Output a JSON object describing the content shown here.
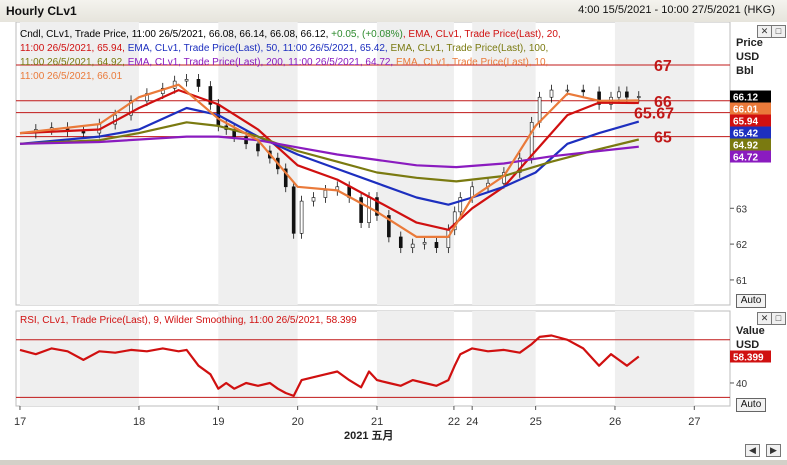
{
  "window": {
    "title": "Hourly CLv1",
    "time_range": "4:00 15/5/2021 - 10:00 27/5/2021 (HKG)"
  },
  "price_panel": {
    "legend_lines": [
      {
        "parts": [
          {
            "text": "Cndl, CLv1, Trade Price, 11:00 26/5/2021, 66.08, 66.14, 66.08, 66.12, ",
            "color": "#000000"
          },
          {
            "text": "+0.05, (+0.08%)",
            "color": "#2e8b2e"
          },
          {
            "text": ", EMA, CLv1, Trade Price(Last), 20,",
            "color": "#d01010"
          }
        ]
      },
      {
        "parts": [
          {
            "text": "11:00 26/5/2021, 65.94, ",
            "color": "#d01010"
          },
          {
            "text": "EMA, CLv1, Trade Price(Last), 50, 11:00 26/5/2021, 65.42, ",
            "color": "#1d2fbf"
          },
          {
            "text": "EMA, CLv1, Trade Price(Last), 100,",
            "color": "#7a7a10"
          }
        ]
      },
      {
        "parts": [
          {
            "text": "11:00 26/5/2021, 64.92, ",
            "color": "#7a7a10"
          },
          {
            "text": "EMA, CLv1, Trade Price(Last), 200, 11:00 26/5/2021, 64.72, ",
            "color": "#8a1bbf"
          },
          {
            "text": "EMA, CLv1, Trade Price(Last), 10,",
            "color": "#ea7a3a"
          }
        ]
      },
      {
        "parts": [
          {
            "text": "11:00 26/5/2021, 66.01",
            "color": "#ea7a3a"
          }
        ]
      }
    ],
    "axis_header": [
      "Price",
      "USD",
      "Bbl"
    ],
    "auto_label": "Auto"
  },
  "rsi_panel": {
    "legend": "RSI, CLv1, Trade Price(Last), 9, Wilder Smoothing, 11:00 26/5/2021, 58.399",
    "axis_header": [
      "Value",
      "USD"
    ],
    "auto_label": "Auto"
  },
  "x_axis": {
    "day_ticks": [
      {
        "day": "17",
        "x": 16.5
      },
      {
        "day": "18",
        "x": 18
      },
      {
        "day": "19",
        "x": 19
      },
      {
        "day": "20",
        "x": 20
      },
      {
        "day": "21",
        "x": 21
      },
      {
        "day": "22",
        "x": 21.97
      },
      {
        "day": "24",
        "x": 22.2
      },
      {
        "day": "25",
        "x": 23
      },
      {
        "day": "26",
        "x": 24
      },
      {
        "day": "27",
        "x": 25
      }
    ],
    "caption": "2021 五月"
  },
  "chart_data": [
    {
      "type": "line",
      "subtype": "candlestick with EMAs",
      "title": "Hourly CLv1",
      "ylabel": "Price USD Bbl",
      "ylim": [
        60.3,
        68.2
      ],
      "xlim": [
        16.45,
        25.45
      ],
      "y_ticks": [
        61,
        62,
        63
      ],
      "grid": true,
      "candles_close": [
        [
          16.5,
          65.1
        ],
        [
          16.7,
          65.2
        ],
        [
          16.9,
          65.25
        ],
        [
          17.1,
          65.15
        ],
        [
          17.3,
          65.1
        ],
        [
          17.5,
          65.35
        ],
        [
          17.7,
          65.6
        ],
        [
          17.9,
          66.0
        ],
        [
          18.1,
          66.2
        ],
        [
          18.3,
          66.35
        ],
        [
          18.45,
          66.55
        ],
        [
          18.6,
          66.6
        ],
        [
          18.75,
          66.4
        ],
        [
          18.9,
          65.9
        ],
        [
          19.0,
          65.3
        ],
        [
          19.1,
          65.2
        ],
        [
          19.2,
          65.0
        ],
        [
          19.35,
          64.8
        ],
        [
          19.5,
          64.6
        ],
        [
          19.65,
          64.4
        ],
        [
          19.75,
          64.1
        ],
        [
          19.85,
          63.6
        ],
        [
          19.95,
          62.3
        ],
        [
          20.05,
          63.2
        ],
        [
          20.2,
          63.3
        ],
        [
          20.35,
          63.5
        ],
        [
          20.5,
          63.6
        ],
        [
          20.65,
          63.3
        ],
        [
          20.8,
          62.6
        ],
        [
          20.9,
          63.3
        ],
        [
          21.0,
          62.8
        ],
        [
          21.15,
          62.2
        ],
        [
          21.3,
          61.9
        ],
        [
          21.45,
          62.0
        ],
        [
          21.6,
          62.05
        ],
        [
          21.75,
          61.9
        ],
        [
          21.9,
          62.4
        ],
        [
          21.98,
          62.9
        ],
        [
          22.05,
          63.3
        ],
        [
          22.2,
          63.6
        ],
        [
          22.4,
          63.7
        ],
        [
          22.6,
          64.0
        ],
        [
          22.8,
          64.4
        ],
        [
          22.95,
          65.4
        ],
        [
          23.05,
          66.1
        ],
        [
          23.2,
          66.3
        ],
        [
          23.4,
          66.3
        ],
        [
          23.6,
          66.25
        ],
        [
          23.8,
          65.9
        ],
        [
          23.95,
          66.1
        ],
        [
          24.05,
          66.25
        ],
        [
          24.15,
          66.1
        ],
        [
          24.3,
          66.12
        ]
      ],
      "series": [
        {
          "name": "EMA 20",
          "color": "#d01010",
          "points": [
            [
              16.5,
              65.1
            ],
            [
              17.5,
              65.2
            ],
            [
              18.0,
              65.8
            ],
            [
              18.5,
              66.3
            ],
            [
              19.0,
              65.9
            ],
            [
              19.5,
              65.2
            ],
            [
              20.0,
              64.2
            ],
            [
              20.5,
              63.8
            ],
            [
              21.0,
              63.2
            ],
            [
              21.5,
              62.6
            ],
            [
              21.9,
              62.4
            ],
            [
              22.2,
              63.0
            ],
            [
              22.6,
              63.6
            ],
            [
              23.0,
              64.6
            ],
            [
              23.4,
              65.6
            ],
            [
              23.8,
              65.95
            ],
            [
              24.3,
              65.94
            ]
          ]
        },
        {
          "name": "EMA 50",
          "color": "#1d2fbf",
          "points": [
            [
              16.5,
              64.8
            ],
            [
              17.5,
              65.0
            ],
            [
              18.0,
              65.2
            ],
            [
              18.6,
              65.8
            ],
            [
              19.0,
              65.6
            ],
            [
              19.5,
              65.0
            ],
            [
              20.0,
              64.5
            ],
            [
              20.5,
              64.1
            ],
            [
              21.0,
              63.7
            ],
            [
              21.5,
              63.3
            ],
            [
              21.9,
              63.1
            ],
            [
              22.2,
              63.3
            ],
            [
              22.6,
              63.6
            ],
            [
              23.0,
              64.0
            ],
            [
              23.4,
              64.8
            ],
            [
              23.8,
              65.1
            ],
            [
              24.3,
              65.42
            ]
          ]
        },
        {
          "name": "EMA 100",
          "color": "#7a7a10",
          "points": [
            [
              16.5,
              64.8
            ],
            [
              17.5,
              64.9
            ],
            [
              18.0,
              65.1
            ],
            [
              18.6,
              65.4
            ],
            [
              19.0,
              65.3
            ],
            [
              19.5,
              65.0
            ],
            [
              20.0,
              64.6
            ],
            [
              20.5,
              64.3
            ],
            [
              21.0,
              64.0
            ],
            [
              21.5,
              63.85
            ],
            [
              22.0,
              63.75
            ],
            [
              22.6,
              63.9
            ],
            [
              23.2,
              64.3
            ],
            [
              23.8,
              64.65
            ],
            [
              24.3,
              64.92
            ]
          ]
        },
        {
          "name": "EMA 200",
          "color": "#8a1bbf",
          "points": [
            [
              16.5,
              64.8
            ],
            [
              17.5,
              64.85
            ],
            [
              18.6,
              65.0
            ],
            [
              19.0,
              65.0
            ],
            [
              19.5,
              64.9
            ],
            [
              20.0,
              64.7
            ],
            [
              20.5,
              64.5
            ],
            [
              21.0,
              64.35
            ],
            [
              21.5,
              64.2
            ],
            [
              22.0,
              64.15
            ],
            [
              22.6,
              64.25
            ],
            [
              23.2,
              64.45
            ],
            [
              23.8,
              64.6
            ],
            [
              24.3,
              64.72
            ]
          ]
        },
        {
          "name": "EMA 10",
          "color": "#ea7a3a",
          "points": [
            [
              16.5,
              65.1
            ],
            [
              17.5,
              65.35
            ],
            [
              18.0,
              66.1
            ],
            [
              18.5,
              66.45
            ],
            [
              19.0,
              65.5
            ],
            [
              19.5,
              64.9
            ],
            [
              20.0,
              63.6
            ],
            [
              20.5,
              63.5
            ],
            [
              21.0,
              62.9
            ],
            [
              21.5,
              62.2
            ],
            [
              21.9,
              62.2
            ],
            [
              22.2,
              63.3
            ],
            [
              22.6,
              63.9
            ],
            [
              23.0,
              65.3
            ],
            [
              23.4,
              66.2
            ],
            [
              23.8,
              66.0
            ],
            [
              24.3,
              66.01
            ]
          ]
        }
      ],
      "annotations": [
        {
          "label": "67",
          "value": 67.0,
          "color": "#c01818"
        },
        {
          "label": "66",
          "value": 66.0,
          "color": "#c01818"
        },
        {
          "label": "65.67",
          "value": 65.67,
          "color": "#c01818"
        },
        {
          "label": "65",
          "value": 65.0,
          "color": "#c01818"
        }
      ],
      "price_labels": [
        {
          "label": "66.12",
          "value": 66.12,
          "color": "#000000"
        },
        {
          "label": "66.01",
          "value": 66.01,
          "color": "#ea7a3a"
        },
        {
          "label": "65.94",
          "value": 65.94,
          "color": "#d01010"
        },
        {
          "label": "65.42",
          "value": 65.42,
          "color": "#1d2fbf"
        },
        {
          "label": "64.92",
          "value": 64.92,
          "color": "#7a7a10"
        },
        {
          "label": "64.72",
          "value": 64.72,
          "color": "#8a1bbf"
        }
      ]
    },
    {
      "type": "line",
      "title": "RSI, CLv1, Trade Price(Last), 9, Wilder Smoothing",
      "ylabel": "Value USD",
      "ylim": [
        24,
        90
      ],
      "xlim": [
        16.45,
        25.45
      ],
      "y_ticks": [
        40
      ],
      "reference_lines": [
        {
          "value": 70,
          "color": "#c01818"
        },
        {
          "value": 30,
          "color": "#c01818"
        }
      ],
      "series": [
        {
          "name": "RSI 9",
          "color": "#d01010",
          "points": [
            [
              16.5,
              63
            ],
            [
              16.7,
              60
            ],
            [
              16.9,
              64
            ],
            [
              17.1,
              62
            ],
            [
              17.3,
              56
            ],
            [
              17.5,
              62
            ],
            [
              17.7,
              61
            ],
            [
              17.9,
              63
            ],
            [
              18.1,
              62
            ],
            [
              18.3,
              64
            ],
            [
              18.5,
              62
            ],
            [
              18.6,
              63
            ],
            [
              18.75,
              52
            ],
            [
              18.9,
              46
            ],
            [
              19.0,
              36
            ],
            [
              19.1,
              40
            ],
            [
              19.2,
              36
            ],
            [
              19.35,
              40
            ],
            [
              19.5,
              38
            ],
            [
              19.65,
              40
            ],
            [
              19.75,
              36
            ],
            [
              19.85,
              33
            ],
            [
              19.95,
              31
            ],
            [
              20.05,
              42
            ],
            [
              20.2,
              44
            ],
            [
              20.35,
              46
            ],
            [
              20.5,
              48
            ],
            [
              20.65,
              42
            ],
            [
              20.8,
              37
            ],
            [
              20.9,
              48
            ],
            [
              21.0,
              42
            ],
            [
              21.15,
              40
            ],
            [
              21.3,
              38
            ],
            [
              21.45,
              42
            ],
            [
              21.6,
              40
            ],
            [
              21.75,
              38
            ],
            [
              21.9,
              42
            ],
            [
              21.98,
              52
            ],
            [
              22.05,
              60
            ],
            [
              22.2,
              64
            ],
            [
              22.4,
              62
            ],
            [
              22.6,
              63
            ],
            [
              22.8,
              61
            ],
            [
              22.95,
              67
            ],
            [
              23.05,
              72
            ],
            [
              23.2,
              73
            ],
            [
              23.4,
              70
            ],
            [
              23.6,
              64
            ],
            [
              23.8,
              52
            ],
            [
              23.95,
              60
            ],
            [
              24.05,
              56
            ],
            [
              24.15,
              52
            ],
            [
              24.3,
              58.399
            ]
          ]
        }
      ],
      "last_value_label": "58.399"
    }
  ]
}
